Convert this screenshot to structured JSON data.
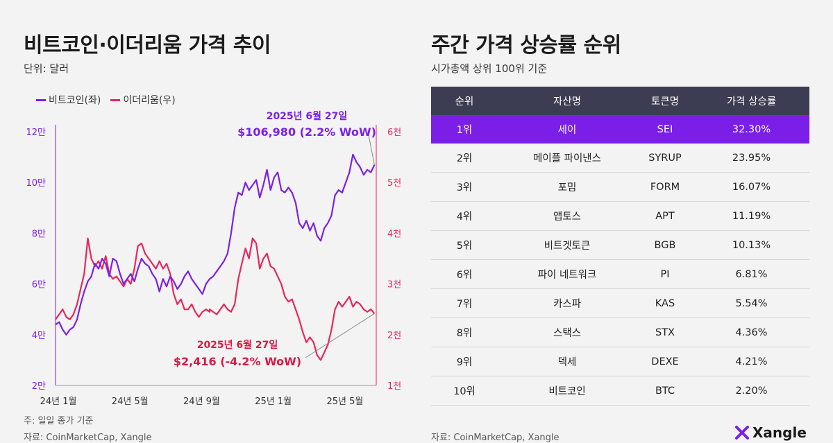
{
  "left": {
    "title": "비트코인·이더리움 가격 추이",
    "unit": "단위: 달러",
    "note": "주: 일일 종가 기준",
    "source": "자료: CoinMarketCap, Xangle"
  },
  "right": {
    "title": "주간 가격 상승률 순위",
    "subtitle": "시가총액 상위 100위 기준",
    "source": "자료: CoinMarketCap, Xangle"
  },
  "logo": {
    "text": "Xangle",
    "icon": "xangle-logo-icon"
  },
  "colors": {
    "btc": "#7b1fe8",
    "eth": "#e8265b",
    "header": "#3c3c52",
    "highlight": "#7b1fe8"
  },
  "chart_data": [
    {
      "type": "line",
      "legend": [
        "비트코인(좌)",
        "이더리움(우)"
      ],
      "legend_position": "top-left",
      "x_ticks": [
        {
          "label": "24년 1월",
          "t": 0
        },
        {
          "label": "24년 5월",
          "t": 4
        },
        {
          "label": "24년 9월",
          "t": 8
        },
        {
          "label": "25년 1월",
          "t": 12
        },
        {
          "label": "25년 5월",
          "t": 16
        }
      ],
      "x_range": [
        0,
        17.9
      ],
      "y_left": {
        "ticks": [
          {
            "label": "2만",
            "v": 20000
          },
          {
            "label": "4만",
            "v": 40000
          },
          {
            "label": "6만",
            "v": 60000
          },
          {
            "label": "8만",
            "v": 80000
          },
          {
            "label": "10만",
            "v": 100000
          },
          {
            "label": "12만",
            "v": 120000
          }
        ],
        "range": [
          20000,
          120000
        ]
      },
      "y_right": {
        "ticks": [
          {
            "label": "1천",
            "v": 1000
          },
          {
            "label": "2천",
            "v": 2000
          },
          {
            "label": "3천",
            "v": 3000
          },
          {
            "label": "4천",
            "v": 4000
          },
          {
            "label": "5천",
            "v": 5000
          },
          {
            "label": "6천",
            "v": 6000
          }
        ],
        "range": [
          1000,
          6000
        ]
      },
      "series": [
        {
          "name": "비트코인(좌)",
          "axis": "left",
          "points": [
            [
              0,
              44000
            ],
            [
              0.2,
              45000
            ],
            [
              0.4,
              42000
            ],
            [
              0.6,
              40000
            ],
            [
              0.8,
              42000
            ],
            [
              1.0,
              43000
            ],
            [
              1.2,
              46000
            ],
            [
              1.4,
              52000
            ],
            [
              1.6,
              57000
            ],
            [
              1.8,
              61000
            ],
            [
              2.0,
              63000
            ],
            [
              2.2,
              68000
            ],
            [
              2.4,
              66000
            ],
            [
              2.6,
              70000
            ],
            [
              2.8,
              68000
            ],
            [
              3.0,
              63000
            ],
            [
              3.2,
              70000
            ],
            [
              3.4,
              69000
            ],
            [
              3.6,
              64000
            ],
            [
              3.8,
              60000
            ],
            [
              4.0,
              62000
            ],
            [
              4.2,
              64000
            ],
            [
              4.4,
              61000
            ],
            [
              4.6,
              66000
            ],
            [
              4.8,
              70000
            ],
            [
              5.0,
              68000
            ],
            [
              5.2,
              67000
            ],
            [
              5.4,
              64000
            ],
            [
              5.6,
              62000
            ],
            [
              5.8,
              57000
            ],
            [
              6.0,
              62000
            ],
            [
              6.2,
              59000
            ],
            [
              6.4,
              63000
            ],
            [
              6.6,
              61000
            ],
            [
              6.8,
              58000
            ],
            [
              7.0,
              60000
            ],
            [
              7.2,
              63000
            ],
            [
              7.4,
              65000
            ],
            [
              7.6,
              62000
            ],
            [
              7.8,
              60000
            ],
            [
              8.0,
              58000
            ],
            [
              8.2,
              56000
            ],
            [
              8.4,
              60000
            ],
            [
              8.6,
              62000
            ],
            [
              8.8,
              63000
            ],
            [
              9.0,
              65000
            ],
            [
              9.2,
              67000
            ],
            [
              9.4,
              69000
            ],
            [
              9.6,
              72000
            ],
            [
              9.8,
              80000
            ],
            [
              10.0,
              90000
            ],
            [
              10.2,
              96000
            ],
            [
              10.4,
              95000
            ],
            [
              10.6,
              100000
            ],
            [
              10.8,
              97000
            ],
            [
              11.0,
              99000
            ],
            [
              11.2,
              101000
            ],
            [
              11.4,
              94000
            ],
            [
              11.6,
              99000
            ],
            [
              11.8,
              105000
            ],
            [
              12.0,
              97000
            ],
            [
              12.2,
              102000
            ],
            [
              12.4,
              104000
            ],
            [
              12.6,
              97000
            ],
            [
              12.8,
              96000
            ],
            [
              13.0,
              98000
            ],
            [
              13.2,
              96000
            ],
            [
              13.4,
              92000
            ],
            [
              13.6,
              84000
            ],
            [
              13.8,
              82000
            ],
            [
              14.0,
              85000
            ],
            [
              14.2,
              81000
            ],
            [
              14.4,
              84000
            ],
            [
              14.6,
              79000
            ],
            [
              14.8,
              77000
            ],
            [
              15.0,
              82000
            ],
            [
              15.2,
              84000
            ],
            [
              15.4,
              87000
            ],
            [
              15.6,
              95000
            ],
            [
              15.8,
              97000
            ],
            [
              16.0,
              96000
            ],
            [
              16.2,
              100000
            ],
            [
              16.4,
              104000
            ],
            [
              16.6,
              111000
            ],
            [
              16.8,
              108000
            ],
            [
              17.0,
              106000
            ],
            [
              17.2,
              103000
            ],
            [
              17.4,
              105000
            ],
            [
              17.6,
              104000
            ],
            [
              17.8,
              106980
            ]
          ]
        },
        {
          "name": "이더리움(우)",
          "axis": "right",
          "points": [
            [
              0,
              2300
            ],
            [
              0.2,
              2400
            ],
            [
              0.4,
              2500
            ],
            [
              0.6,
              2350
            ],
            [
              0.8,
              2300
            ],
            [
              1.0,
              2400
            ],
            [
              1.2,
              2600
            ],
            [
              1.4,
              2900
            ],
            [
              1.6,
              3200
            ],
            [
              1.8,
              3900
            ],
            [
              2.0,
              3500
            ],
            [
              2.2,
              3350
            ],
            [
              2.4,
              3450
            ],
            [
              2.6,
              3300
            ],
            [
              2.8,
              3550
            ],
            [
              3.0,
              3200
            ],
            [
              3.2,
              3100
            ],
            [
              3.4,
              3150
            ],
            [
              3.6,
              3050
            ],
            [
              3.8,
              2950
            ],
            [
              4.0,
              3100
            ],
            [
              4.2,
              3000
            ],
            [
              4.4,
              3300
            ],
            [
              4.6,
              3750
            ],
            [
              4.8,
              3800
            ],
            [
              5.0,
              3600
            ],
            [
              5.2,
              3500
            ],
            [
              5.4,
              3400
            ],
            [
              5.6,
              3300
            ],
            [
              5.8,
              3450
            ],
            [
              6.0,
              3300
            ],
            [
              6.2,
              3400
            ],
            [
              6.4,
              3200
            ],
            [
              6.6,
              2800
            ],
            [
              6.8,
              2600
            ],
            [
              7.0,
              2700
            ],
            [
              7.2,
              2500
            ],
            [
              7.4,
              2500
            ],
            [
              7.6,
              2600
            ],
            [
              7.8,
              2450
            ],
            [
              8.0,
              2350
            ],
            [
              8.2,
              2450
            ],
            [
              8.4,
              2500
            ],
            [
              8.6,
              2450
            ],
            [
              8.6,
              2500
            ],
            [
              8.8,
              2450
            ],
            [
              9.0,
              2400
            ],
            [
              9.2,
              2500
            ],
            [
              9.4,
              2600
            ],
            [
              9.6,
              2500
            ],
            [
              9.8,
              2450
            ],
            [
              10.0,
              2600
            ],
            [
              10.2,
              3100
            ],
            [
              10.4,
              3400
            ],
            [
              10.6,
              3700
            ],
            [
              10.8,
              3500
            ],
            [
              11.0,
              3900
            ],
            [
              11.2,
              3800
            ],
            [
              11.4,
              3300
            ],
            [
              11.6,
              3500
            ],
            [
              11.8,
              3600
            ],
            [
              12.0,
              3350
            ],
            [
              12.2,
              3300
            ],
            [
              12.4,
              3150
            ],
            [
              12.6,
              3000
            ],
            [
              12.8,
              2750
            ],
            [
              13.0,
              2650
            ],
            [
              13.2,
              2700
            ],
            [
              13.4,
              2500
            ],
            [
              13.6,
              2300
            ],
            [
              13.8,
              2050
            ],
            [
              14.0,
              1850
            ],
            [
              14.2,
              1950
            ],
            [
              14.4,
              1850
            ],
            [
              14.6,
              1600
            ],
            [
              14.8,
              1500
            ],
            [
              15.0,
              1650
            ],
            [
              15.2,
              1800
            ],
            [
              15.4,
              2100
            ],
            [
              15.6,
              2500
            ],
            [
              15.8,
              2650
            ],
            [
              16.0,
              2550
            ],
            [
              16.2,
              2650
            ],
            [
              16.4,
              2750
            ],
            [
              16.6,
              2550
            ],
            [
              16.8,
              2650
            ],
            [
              17.0,
              2600
            ],
            [
              17.2,
              2500
            ],
            [
              17.4,
              2450
            ],
            [
              17.6,
              2500
            ],
            [
              17.8,
              2416
            ]
          ]
        }
      ],
      "annotations": [
        {
          "series": "비트코인(좌)",
          "date": "2025년 6월 27일",
          "value": "$106,980 (2.2% WoW)"
        },
        {
          "series": "이더리움(우)",
          "date": "2025년 6월 27일",
          "value": "$2,416 (-4.2% WoW)"
        }
      ]
    },
    {
      "type": "table",
      "columns": [
        "순위",
        "자산명",
        "토큰명",
        "가격 상승률"
      ],
      "rows": [
        [
          "1위",
          "세이",
          "SEI",
          "32.30%"
        ],
        [
          "2위",
          "메이플 파이낸스",
          "SYRUP",
          "23.95%"
        ],
        [
          "3위",
          "포밈",
          "FORM",
          "16.07%"
        ],
        [
          "4위",
          "앱토스",
          "APT",
          "11.19%"
        ],
        [
          "5위",
          "비트겟토큰",
          "BGB",
          "10.13%"
        ],
        [
          "6위",
          "파이 네트워크",
          "PI",
          "6.81%"
        ],
        [
          "7위",
          "카스파",
          "KAS",
          "5.54%"
        ],
        [
          "8위",
          "스택스",
          "STX",
          "4.36%"
        ],
        [
          "9위",
          "덱세",
          "DEXE",
          "4.21%"
        ],
        [
          "10위",
          "비트코인",
          "BTC",
          "2.20%"
        ]
      ],
      "highlight_row": 0
    }
  ]
}
